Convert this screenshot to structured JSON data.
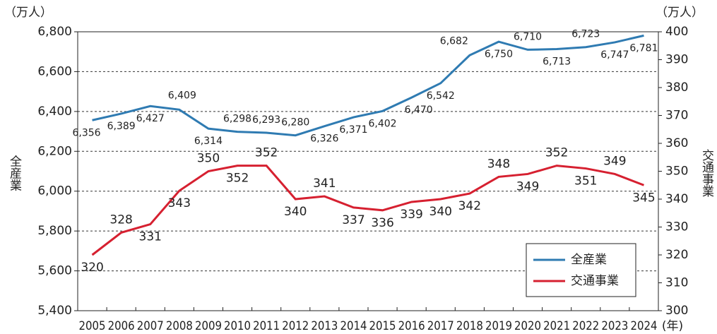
{
  "chart_data": {
    "type": "line",
    "y_unit_label": "（万人）",
    "y2_unit_label": "（万人）",
    "ylabel": "全産業",
    "y2label": "交通事業",
    "x_unit_label": "(年)",
    "categories": [
      "2005",
      "2006",
      "2007",
      "2008",
      "2009",
      "2010",
      "2011",
      "2012",
      "2013",
      "2014",
      "2015",
      "2016",
      "2017",
      "2018",
      "2019",
      "2020",
      "2021",
      "2022",
      "2023",
      "2024"
    ],
    "series": [
      {
        "name": "全産業",
        "color": "#2f7bb2",
        "axis": "y",
        "values": [
          6356,
          6389,
          6427,
          6409,
          6314,
          6298,
          6293,
          6280,
          6326,
          6371,
          6402,
          6470,
          6542,
          6682,
          6750,
          6710,
          6713,
          6723,
          6747,
          6781
        ],
        "value_labels": [
          "6,356",
          "6,389",
          "6,427",
          "6,409",
          "6,314",
          "6,298",
          "6,293",
          "6,280",
          "6,326",
          "6,371",
          "6,402",
          "6,470",
          "6,542",
          "6,682",
          "6,750",
          "6,710",
          "6,713",
          "6,723",
          "6,747",
          "6,781"
        ]
      },
      {
        "name": "交通事業",
        "color": "#d62030",
        "axis": "y2",
        "values": [
          320,
          328,
          331,
          343,
          350,
          352,
          352,
          340,
          341,
          337,
          336,
          339,
          340,
          342,
          348,
          349,
          352,
          351,
          349,
          345
        ]
      }
    ],
    "ylim": [
      5400,
      6800
    ],
    "yticks": [
      {
        "value": 5400,
        "label": "5,400"
      },
      {
        "value": 5600,
        "label": "5,600"
      },
      {
        "value": 5800,
        "label": "5,800"
      },
      {
        "value": 6000,
        "label": "6,000"
      },
      {
        "value": 6200,
        "label": "6,200"
      },
      {
        "value": 6400,
        "label": "6,400"
      },
      {
        "value": 6600,
        "label": "6,600"
      },
      {
        "value": 6800,
        "label": "6,800"
      }
    ],
    "y2lim": [
      300,
      400
    ],
    "y2ticks": [
      300,
      310,
      320,
      330,
      340,
      350,
      360,
      370,
      380,
      390,
      400
    ],
    "grid": true,
    "legend": "lower right"
  }
}
